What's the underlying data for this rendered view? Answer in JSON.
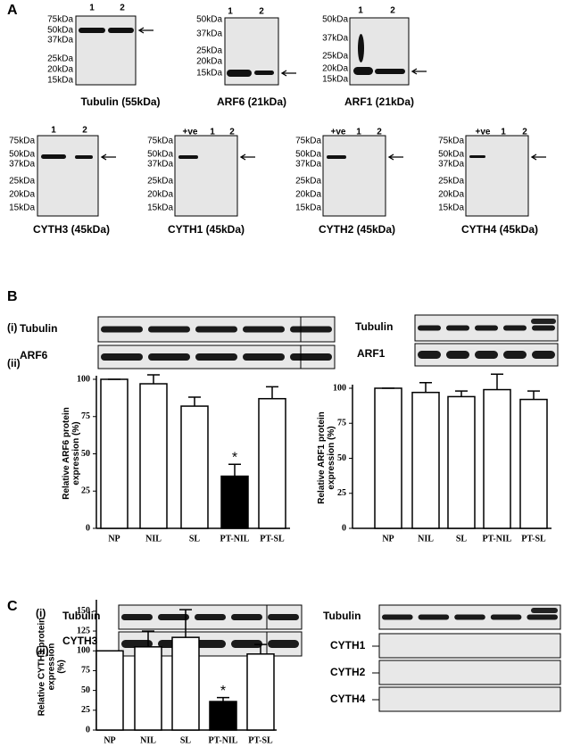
{
  "panel_labels": [
    "A",
    "B",
    "C"
  ],
  "panel_a": {
    "blots": [
      {
        "lanes": [
          "1",
          "2"
        ],
        "markers": [
          "75kDa",
          "50kDa",
          "37kDa",
          "25kDa",
          "20kDa",
          "15kDa"
        ],
        "caption": "Tubulin  (55kDa)"
      },
      {
        "lanes": [
          "1",
          "2"
        ],
        "markers": [
          "50kDa",
          "37kDa",
          "25kDa",
          "20kDa",
          "15kDa"
        ],
        "caption": "ARF6  (21kDa)"
      },
      {
        "lanes": [
          "1",
          "2"
        ],
        "markers": [
          "50kDa",
          "37kDa",
          "25kDa",
          "20kDa",
          "15kDa"
        ],
        "caption": "ARF1  (21kDa)"
      },
      {
        "lanes": [
          "1",
          "2"
        ],
        "markers": [
          "75kDa",
          "50kDa",
          "37kDa",
          "25kDa",
          "20kDa",
          "15kDa"
        ],
        "caption": "CYTH3  (45kDa)"
      },
      {
        "lanes": [
          "+ve",
          "1",
          "2"
        ],
        "markers": [
          "75kDa",
          "50kDa",
          "37kDa",
          "25kDa",
          "20kDa",
          "15kDa"
        ],
        "caption": "CYTH1  (45kDa)"
      },
      {
        "lanes": [
          "+ve",
          "1",
          "2"
        ],
        "markers": [
          "75kDa",
          "50kDa",
          "37kDa",
          "25kDa",
          "20kDa",
          "15kDa"
        ],
        "caption": "CYTH2  (45kDa)"
      },
      {
        "lanes": [
          "+ve",
          "1",
          "2"
        ],
        "markers": [
          "75kDa",
          "50kDa",
          "37kDa",
          "25kDa",
          "20kDa",
          "15kDa"
        ],
        "caption": "CYTH4  (45kDa)"
      }
    ]
  },
  "panel_b": {
    "sub_labels": [
      "(i)",
      "(ii)"
    ],
    "blot_labels_left": [
      "Tubulin",
      "ARF6"
    ],
    "blot_labels_right": [
      "Tubulin",
      "ARF1"
    ]
  },
  "panel_c": {
    "sub_labels": [
      "(i)",
      "(ii)"
    ],
    "blot_labels_left": [
      "Tubulin",
      "CYTH3"
    ],
    "blot_labels_right": [
      "Tubulin",
      "CYTH1",
      "CYTH2",
      "CYTH4"
    ]
  },
  "chart_data": [
    {
      "type": "bar",
      "ylabel": [
        "Relative ARF6 protein",
        "expression (%)"
      ],
      "categories": [
        "NP",
        "NIL",
        "SL",
        "PT-NIL",
        "PT-SL"
      ],
      "values": [
        100,
        97,
        82,
        35,
        87
      ],
      "errors": [
        0,
        6,
        6,
        8,
        8
      ],
      "colors": [
        "#ffffff",
        "#ffffff",
        "#ffffff",
        "#000000",
        "#ffffff"
      ],
      "ylim": [
        0,
        100
      ],
      "yticks": [
        0,
        25,
        50,
        75,
        100
      ],
      "annotations": [
        {
          "text": "*",
          "x": "PT-NIL"
        }
      ]
    },
    {
      "type": "bar",
      "ylabel": [
        "Relative ARF1 protein",
        "expression (%)"
      ],
      "categories": [
        "NP",
        "NIL",
        "SL",
        "PT-NIL",
        "PT-SL"
      ],
      "values": [
        100,
        97,
        94,
        99,
        92
      ],
      "errors": [
        0,
        7,
        4,
        11,
        6
      ],
      "colors": [
        "#ffffff",
        "#ffffff",
        "#ffffff",
        "#ffffff",
        "#ffffff"
      ],
      "ylim": [
        0,
        100
      ],
      "yticks": [
        0,
        25,
        50,
        75,
        100
      ]
    },
    {
      "type": "bar",
      "ylabel": [
        "Relative CYTH3 protein",
        "expression",
        "(%)"
      ],
      "categories": [
        "NP",
        "NIL",
        "SL",
        "PT-NIL",
        "PT-SL"
      ],
      "values": [
        100,
        105,
        117,
        36,
        96
      ],
      "errors": [
        0,
        20,
        35,
        5,
        12
      ],
      "colors": [
        "#ffffff",
        "#ffffff",
        "#ffffff",
        "#000000",
        "#ffffff"
      ],
      "ylim": [
        0,
        160
      ],
      "yticks": [
        0,
        25,
        50,
        75,
        100,
        125,
        150
      ],
      "annotations": [
        {
          "text": "*",
          "x": "PT-NIL"
        }
      ]
    }
  ]
}
